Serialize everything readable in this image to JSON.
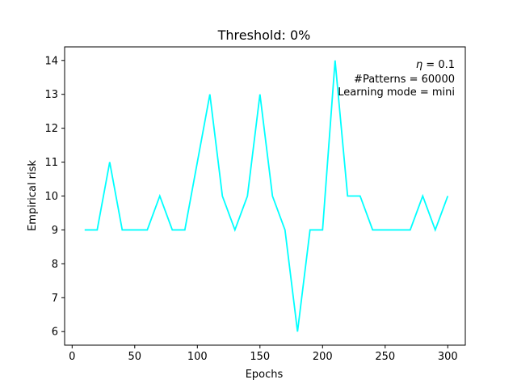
{
  "chart_data": {
    "type": "line",
    "title": "Threshold: 0%",
    "xlabel": "Epochs",
    "ylabel": "Empirical risk",
    "xlim": [
      -6,
      314
    ],
    "ylim": [
      5.6,
      14.4
    ],
    "xticks": [
      0,
      50,
      100,
      150,
      200,
      250,
      300
    ],
    "yticks": [
      6,
      7,
      8,
      9,
      10,
      11,
      12,
      13,
      14
    ],
    "grid": false,
    "color": "#00ffff",
    "series": [
      {
        "x": [
          10,
          20,
          30,
          40,
          50,
          60,
          70,
          80,
          90,
          100,
          110,
          120,
          130,
          140,
          150,
          160,
          170,
          180,
          190,
          200,
          210,
          220,
          230,
          240,
          250,
          260,
          270,
          280,
          290,
          300
        ],
        "values": [
          9,
          9,
          11,
          9,
          9,
          9,
          10,
          9,
          9,
          11,
          13,
          10,
          9,
          10,
          13,
          10,
          9,
          6,
          9,
          9,
          14,
          10,
          10,
          9,
          9,
          9,
          9,
          10,
          9,
          10
        ]
      }
    ],
    "annotations": {
      "eta_symbol": "η",
      "eta_rest": " = 0.1",
      "patterns": "#Patterns = 60000",
      "learning_mode": "Learning mode = mini"
    }
  }
}
